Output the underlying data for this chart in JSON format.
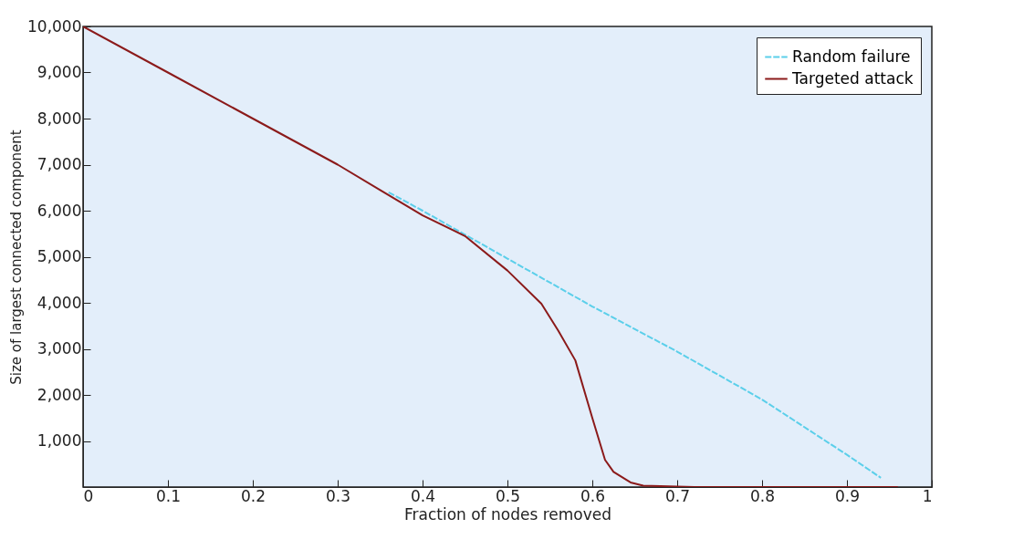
{
  "chart_data": {
    "type": "line",
    "xlabel": "Fraction of nodes removed",
    "ylabel": "Size of largest connected component",
    "xlim": [
      0,
      1
    ],
    "xticks": [
      0,
      0.1,
      0.2,
      0.3,
      0.4,
      0.5,
      0.6,
      0.7,
      0.8,
      0.9,
      1
    ],
    "ylim": [
      0,
      10000
    ],
    "yticks": [
      {
        "value": 0,
        "label": null
      },
      {
        "value": 1000,
        "label": "1,000"
      },
      {
        "value": 2000,
        "label": "2,000"
      },
      {
        "value": 3000,
        "label": "3,000"
      },
      {
        "value": 4000,
        "label": "4,000"
      },
      {
        "value": 5000,
        "label": "5,000"
      },
      {
        "value": 6000,
        "label": "6,000"
      },
      {
        "value": 7000,
        "label": "7,000"
      },
      {
        "value": 8000,
        "label": "8,000"
      },
      {
        "value": 9000,
        "label": "9,000"
      },
      {
        "value": 10000,
        "label": "10,000"
      }
    ],
    "grid": false,
    "legend": "top right",
    "marker": "none",
    "series": [
      {
        "name": "Random failure",
        "color": "#5bcfea",
        "line_style": "dashed",
        "x": [
          0.36,
          0.4,
          0.5,
          0.6,
          0.7,
          0.8,
          0.9,
          0.94
        ],
        "values": [
          6400,
          6000,
          4960,
          3920,
          2940,
          1900,
          700,
          200
        ]
      },
      {
        "name": "Targeted attack",
        "color": "#8b1a1a",
        "line_style": "solid",
        "x": [
          0,
          0.1,
          0.2,
          0.3,
          0.35,
          0.4,
          0.45,
          0.5,
          0.54,
          0.56,
          0.58,
          0.6,
          0.615,
          0.625,
          0.645,
          0.66,
          0.72,
          0.96
        ],
        "values": [
          10000,
          9000,
          8000,
          7000,
          6450,
          5900,
          5450,
          4700,
          3980,
          3390,
          2750,
          1500,
          590,
          330,
          100,
          30,
          0,
          0
        ]
      }
    ]
  }
}
